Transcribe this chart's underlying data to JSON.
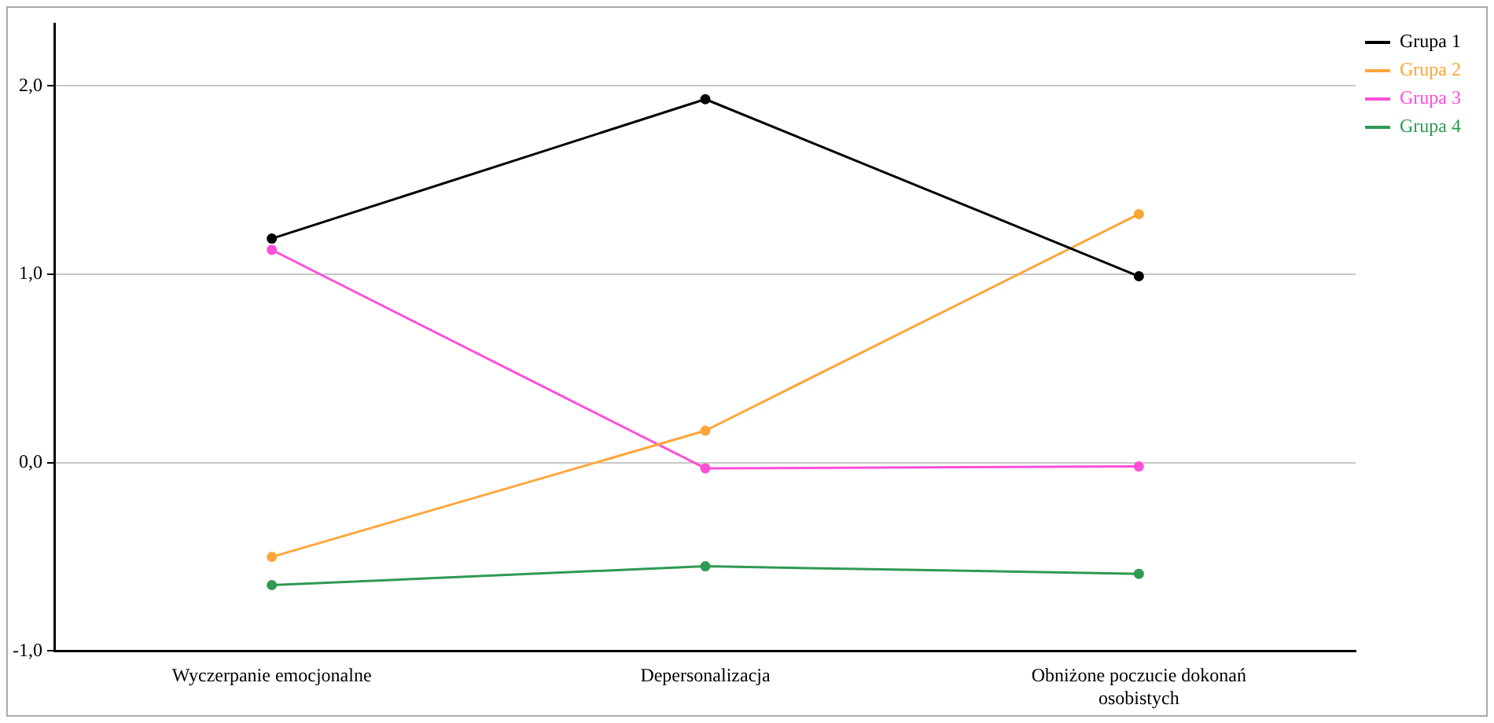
{
  "chart_data": {
    "type": "line",
    "categories": [
      "Wyczerpanie emocjonalne",
      "Depersonalizacja",
      "Obniżone poczucie dokonań osobistych"
    ],
    "series": [
      {
        "name": "Grupa 1",
        "color": "#000000",
        "values": [
          1.19,
          1.93,
          0.99
        ]
      },
      {
        "name": "Grupa 2",
        "color": "#ffa53a",
        "values": [
          -0.5,
          0.17,
          1.32
        ]
      },
      {
        "name": "Grupa 3",
        "color": "#ff4fd8",
        "values": [
          1.13,
          -0.03,
          -0.02
        ]
      },
      {
        "name": "Grupa 4",
        "color": "#2e9a52",
        "values": [
          -0.65,
          -0.55,
          -0.59
        ]
      }
    ],
    "ylim": [
      -1.0,
      2.33
    ],
    "yticks": [
      {
        "value": -1,
        "label": "-1,0"
      },
      {
        "value": 0,
        "label": "0,0"
      },
      {
        "value": 1,
        "label": "1,0"
      },
      {
        "value": 2,
        "label": "2,0"
      }
    ],
    "grid": "y",
    "legend": "top right",
    "marker": "circle",
    "line_style": "solid"
  }
}
